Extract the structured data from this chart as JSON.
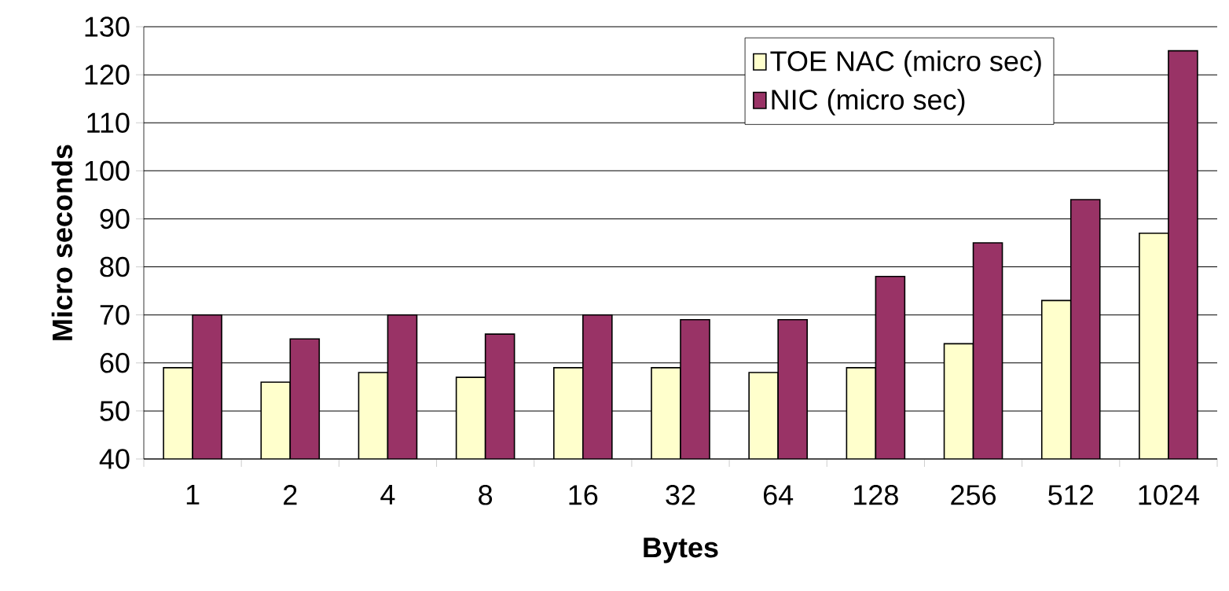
{
  "chart_data": {
    "type": "bar",
    "xlabel": "Bytes",
    "ylabel": "Micro seconds",
    "categories": [
      "1",
      "2",
      "4",
      "8",
      "16",
      "32",
      "64",
      "128",
      "256",
      "512",
      "1024"
    ],
    "series": [
      {
        "name": "TOE NAC (micro sec)",
        "color": "#ffffcc",
        "values": [
          59,
          56,
          58,
          57,
          59,
          59,
          58,
          59,
          64,
          73,
          87
        ]
      },
      {
        "name": "NIC (micro sec)",
        "color": "#993366",
        "values": [
          70,
          65,
          70,
          66,
          70,
          69,
          69,
          78,
          85,
          94,
          125
        ]
      }
    ],
    "ylim": [
      40,
      130
    ],
    "yticks": [
      40,
      50,
      60,
      70,
      80,
      90,
      100,
      110,
      120,
      130
    ],
    "grid": "y",
    "legend": "top right"
  }
}
